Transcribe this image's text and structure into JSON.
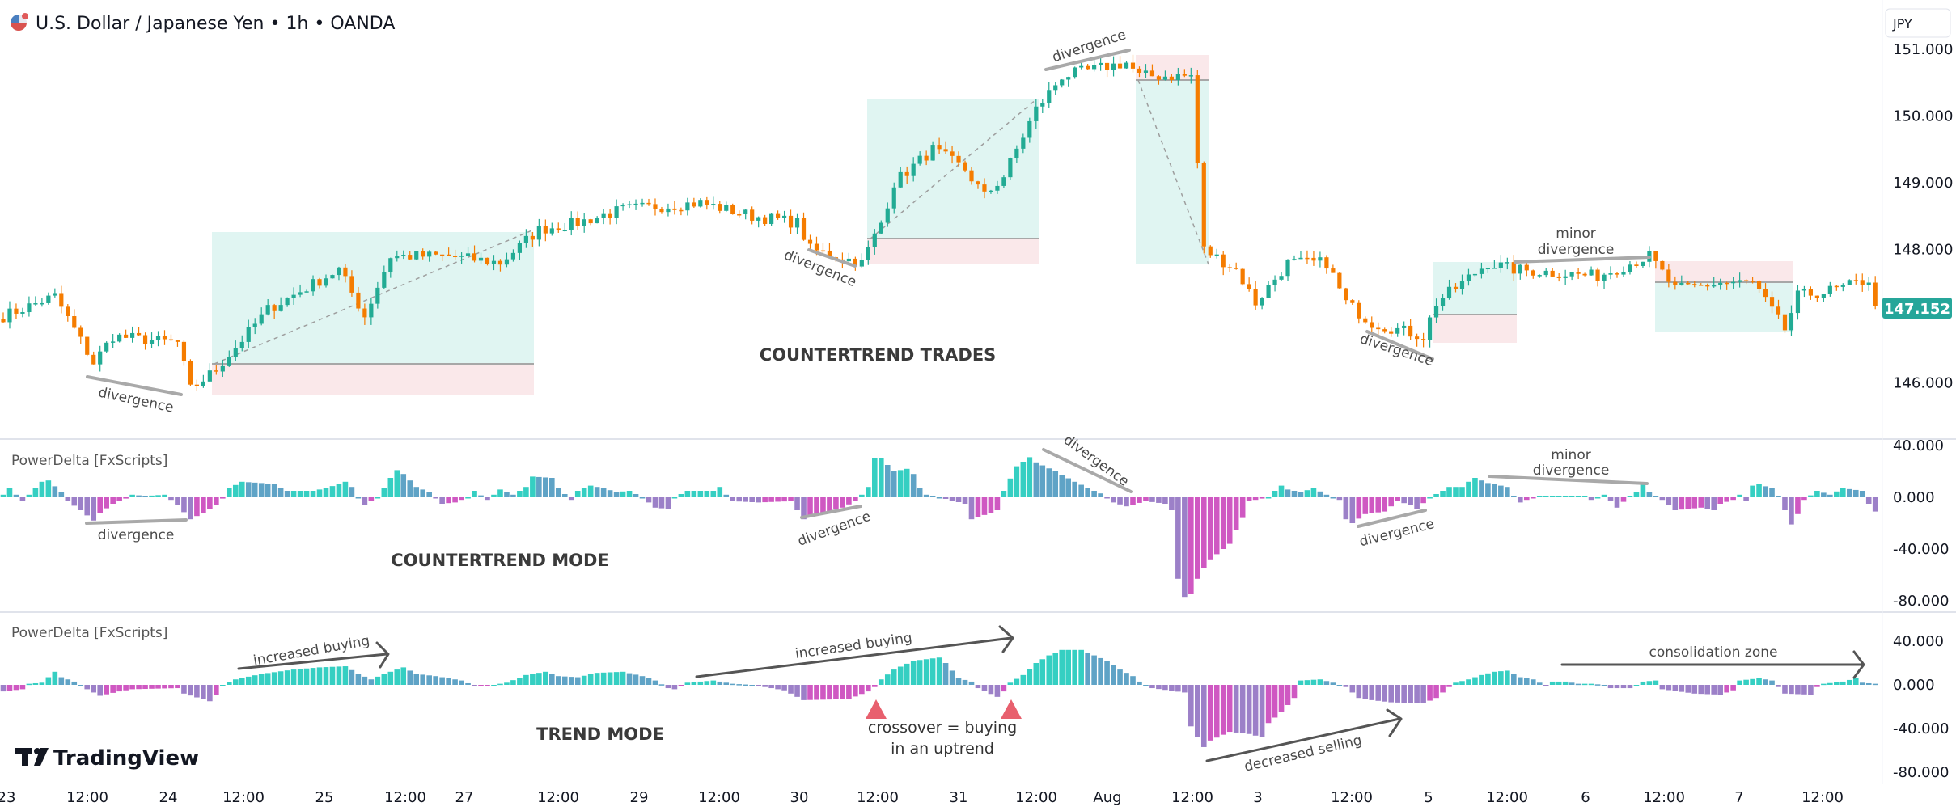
{
  "header": {
    "symbol_title": "U.S. Dollar / Japanese Yen • 1h • OANDA",
    "currency_badge": "JPY",
    "flag_icon": "us-jp-flag-icon"
  },
  "colors": {
    "up": "#22ab94",
    "down": "#f57c00",
    "hist_pos_rising": "#35cfc2",
    "hist_pos_falling": "#5fa3c6",
    "hist_neg_falling": "#9c80c8",
    "hist_neg_rising": "#cf58c2",
    "long_zone": "#e0f5f2",
    "short_zone": "#fae8ea",
    "triangle": "#e8606e",
    "price_label": "#26a69a"
  },
  "price_axis": {
    "ticks": [
      "151.000",
      "150.000",
      "149.000",
      "148.000",
      "146.000"
    ],
    "tick_values": [
      151,
      150,
      149,
      148,
      146
    ],
    "current_price": "147.152"
  },
  "indicator_axis": {
    "ticks": [
      "40.000",
      "0.000",
      "-40.000",
      "-80.000"
    ],
    "tick_values": [
      40,
      0,
      -40,
      -80
    ]
  },
  "time_axis": {
    "labels": [
      "23",
      "12:00",
      "24",
      "12:00",
      "25",
      "12:00",
      "27",
      "12:00",
      "29",
      "12:00",
      "30",
      "12:00",
      "31",
      "12:00",
      "Aug",
      "12:00",
      "3",
      "12:00",
      "5",
      "12:00",
      "6",
      "12:00",
      "7",
      "12:00"
    ]
  },
  "panes": {
    "indicator1_title": "PowerDelta [FxScripts]",
    "indicator2_title": "PowerDelta [FxScripts]"
  },
  "annotations": {
    "main": {
      "divergence_1": "divergence",
      "divergence_2": "divergence",
      "divergence_3": "divergence",
      "divergence_4": "divergence",
      "minor_divergence_line1": "minor",
      "minor_divergence_line2": "divergence",
      "label": "COUNTERTREND TRADES"
    },
    "indicator1": {
      "divergence_1": "divergence",
      "divergence_2": "divergence",
      "divergence_3": "divergence",
      "divergence_4": "divergence",
      "minor_divergence_line1": "minor",
      "minor_divergence_line2": "divergence",
      "label": "COUNTERTREND MODE"
    },
    "indicator2": {
      "increased_buying_1": "increased buying",
      "increased_buying_2": "increased buying",
      "crossover_line1": "crossover = buying",
      "crossover_line2": "in an uptrend",
      "decreased_selling": "decreased selling",
      "consolidation_zone": "consolidation zone",
      "label": "TREND MODE"
    }
  },
  "logo": {
    "text": "TradingView"
  },
  "chart_data": [
    {
      "type": "candlestick",
      "title": "U.S. Dollar / Japanese Yen • 1h • OANDA",
      "ylabel": "JPY",
      "ylim": [
        145.5,
        151.4
      ],
      "bar_count": 291,
      "close_waypoints": [
        [
          0,
          147.0
        ],
        [
          8,
          147.3
        ],
        [
          14,
          146.3
        ],
        [
          17,
          146.7
        ],
        [
          27,
          146.6
        ],
        [
          29,
          145.9
        ],
        [
          33,
          146.2
        ],
        [
          41,
          147.1
        ],
        [
          52,
          147.7
        ],
        [
          56,
          147.0
        ],
        [
          60,
          147.9
        ],
        [
          69,
          147.9
        ],
        [
          77,
          147.8
        ],
        [
          83,
          148.3
        ],
        [
          89,
          148.4
        ],
        [
          96,
          148.6
        ],
        [
          108,
          148.7
        ],
        [
          116,
          148.5
        ],
        [
          123,
          148.4
        ],
        [
          125,
          148.0
        ],
        [
          133,
          147.8
        ],
        [
          136,
          148.4
        ],
        [
          138,
          149.0
        ],
        [
          144,
          149.5
        ],
        [
          149,
          149.2
        ],
        [
          152,
          148.8
        ],
        [
          155,
          149.1
        ],
        [
          160,
          150.1
        ],
        [
          164,
          150.6
        ],
        [
          174,
          150.8
        ],
        [
          176,
          150.6
        ],
        [
          184,
          150.6
        ],
        [
          186,
          148.0
        ],
        [
          191,
          147.7
        ],
        [
          194,
          147.2
        ],
        [
          199,
          147.8
        ],
        [
          205,
          147.8
        ],
        [
          208,
          147.2
        ],
        [
          212,
          146.9
        ],
        [
          220,
          146.7
        ],
        [
          222,
          147.2
        ],
        [
          230,
          147.8
        ],
        [
          234,
          147.7
        ],
        [
          247,
          147.6
        ],
        [
          255,
          147.9
        ],
        [
          259,
          147.4
        ],
        [
          266,
          147.5
        ],
        [
          271,
          147.5
        ],
        [
          276,
          146.8
        ],
        [
          278,
          147.3
        ],
        [
          284,
          147.4
        ],
        [
          289,
          147.55
        ],
        [
          290,
          147.152
        ]
      ]
    },
    {
      "type": "histogram",
      "title": "PowerDelta [FxScripts] — Countertrend mode",
      "ylim": [
        -85,
        45
      ],
      "value_waypoints": [
        [
          0,
          2
        ],
        [
          1,
          7
        ],
        [
          3,
          -3
        ],
        [
          6,
          12
        ],
        [
          7,
          13
        ],
        [
          9,
          4
        ],
        [
          10,
          -3
        ],
        [
          12,
          -10
        ],
        [
          14,
          -18
        ],
        [
          15,
          -12
        ],
        [
          17,
          -5
        ],
        [
          19,
          -1
        ],
        [
          20,
          2
        ],
        [
          22,
          1
        ],
        [
          25,
          2
        ],
        [
          27,
          -6
        ],
        [
          29,
          -17
        ],
        [
          31,
          -12
        ],
        [
          33,
          -6
        ],
        [
          34,
          -1
        ],
        [
          35,
          7
        ],
        [
          37,
          12
        ],
        [
          40,
          11
        ],
        [
          42,
          10
        ],
        [
          44,
          5
        ],
        [
          48,
          5
        ],
        [
          50,
          7
        ],
        [
          53,
          12
        ],
        [
          54,
          8
        ],
        [
          55,
          0
        ],
        [
          56,
          -6
        ],
        [
          58,
          0
        ],
        [
          60,
          15
        ],
        [
          61,
          21
        ],
        [
          62,
          18
        ],
        [
          64,
          8
        ],
        [
          66,
          4
        ],
        [
          68,
          -5
        ],
        [
          70,
          -4
        ],
        [
          72,
          0
        ],
        [
          73,
          5
        ],
        [
          75,
          -2
        ],
        [
          77,
          6
        ],
        [
          79,
          2
        ],
        [
          81,
          8
        ],
        [
          82,
          16
        ],
        [
          85,
          15
        ],
        [
          86,
          7
        ],
        [
          88,
          -2
        ],
        [
          89,
          5
        ],
        [
          91,
          9
        ],
        [
          93,
          7
        ],
        [
          95,
          4
        ],
        [
          97,
          5
        ],
        [
          99,
          0
        ],
        [
          101,
          -8
        ],
        [
          103,
          -9
        ],
        [
          104,
          0
        ],
        [
          106,
          5
        ],
        [
          110,
          5
        ],
        [
          111,
          8
        ],
        [
          112,
          2
        ],
        [
          113,
          -3
        ],
        [
          117,
          -4
        ],
        [
          122,
          -3
        ],
        [
          124,
          -17
        ],
        [
          127,
          -12
        ],
        [
          130,
          -8
        ],
        [
          132,
          -3
        ],
        [
          133,
          2
        ],
        [
          134,
          8
        ],
        [
          135,
          30
        ],
        [
          136,
          30
        ],
        [
          138,
          20
        ],
        [
          140,
          22
        ],
        [
          141,
          18
        ],
        [
          142,
          7
        ],
        [
          143,
          2
        ],
        [
          145,
          0
        ],
        [
          149,
          -5
        ],
        [
          150,
          -17
        ],
        [
          153,
          -12
        ],
        [
          154,
          -10
        ],
        [
          155,
          5
        ],
        [
          157,
          24
        ],
        [
          159,
          31
        ],
        [
          160,
          27
        ],
        [
          163,
          20
        ],
        [
          166,
          12
        ],
        [
          169,
          5
        ],
        [
          170,
          3
        ],
        [
          172,
          -4
        ],
        [
          174,
          -7
        ],
        [
          177,
          -3
        ],
        [
          180,
          -5
        ],
        [
          181,
          -10
        ],
        [
          182,
          -63
        ],
        [
          183,
          -77
        ],
        [
          184,
          -75
        ],
        [
          185,
          -63
        ],
        [
          186,
          -55
        ],
        [
          187,
          -48
        ],
        [
          190,
          -36
        ],
        [
          191,
          -25
        ],
        [
          192,
          -16
        ],
        [
          193,
          -3
        ],
        [
          196,
          0
        ],
        [
          197,
          5
        ],
        [
          198,
          9
        ],
        [
          199,
          6
        ],
        [
          201,
          4
        ],
        [
          203,
          7
        ],
        [
          205,
          2
        ],
        [
          207,
          -2
        ],
        [
          208,
          -17
        ],
        [
          209,
          -20
        ],
        [
          211,
          -13
        ],
        [
          214,
          -11
        ],
        [
          216,
          -3
        ],
        [
          218,
          -6
        ],
        [
          219,
          -9
        ],
        [
          221,
          0
        ],
        [
          223,
          5
        ],
        [
          224,
          8
        ],
        [
          226,
          8
        ],
        [
          227,
          12
        ],
        [
          228,
          15
        ],
        [
          230,
          11
        ],
        [
          233,
          8
        ],
        [
          234,
          1
        ],
        [
          235,
          -4
        ],
        [
          236,
          -2
        ],
        [
          238,
          1
        ],
        [
          245,
          1
        ],
        [
          246,
          -2
        ],
        [
          248,
          2
        ],
        [
          250,
          -8
        ],
        [
          252,
          1
        ],
        [
          253,
          4
        ],
        [
          254,
          11
        ],
        [
          255,
          4
        ],
        [
          257,
          -2
        ],
        [
          259,
          -10
        ],
        [
          263,
          -8
        ],
        [
          265,
          -10
        ],
        [
          266,
          -5
        ],
        [
          268,
          -2
        ],
        [
          269,
          2
        ],
        [
          270,
          -3
        ],
        [
          271,
          9
        ],
        [
          272,
          10
        ],
        [
          274,
          7
        ],
        [
          275,
          1
        ],
        [
          276,
          -10
        ],
        [
          277,
          -21
        ],
        [
          278,
          -13
        ],
        [
          279,
          -2
        ],
        [
          281,
          5
        ],
        [
          283,
          2
        ],
        [
          285,
          7
        ],
        [
          288,
          5
        ],
        [
          289,
          -5
        ],
        [
          290,
          -11
        ]
      ]
    },
    {
      "type": "histogram",
      "title": "PowerDelta [FxScripts] — Trend mode",
      "ylim": [
        -85,
        45
      ],
      "value_waypoints": [
        [
          0,
          -6
        ],
        [
          3,
          -4
        ],
        [
          4,
          1
        ],
        [
          6,
          2
        ],
        [
          8,
          12
        ],
        [
          9,
          7
        ],
        [
          11,
          3
        ],
        [
          12,
          0
        ],
        [
          13,
          -4
        ],
        [
          15,
          -10
        ],
        [
          18,
          -6
        ],
        [
          20,
          -4
        ],
        [
          27,
          -3
        ],
        [
          28,
          -8
        ],
        [
          32,
          -15
        ],
        [
          33,
          -9
        ],
        [
          34,
          0
        ],
        [
          36,
          5
        ],
        [
          40,
          10
        ],
        [
          45,
          14
        ],
        [
          49,
          16
        ],
        [
          53,
          17
        ],
        [
          55,
          10
        ],
        [
          57,
          5
        ],
        [
          59,
          10
        ],
        [
          62,
          16
        ],
        [
          64,
          10
        ],
        [
          67,
          8
        ],
        [
          71,
          4
        ],
        [
          73,
          -1
        ],
        [
          76,
          0
        ],
        [
          78,
          2
        ],
        [
          81,
          9
        ],
        [
          84,
          12
        ],
        [
          86,
          8
        ],
        [
          89,
          7
        ],
        [
          92,
          11
        ],
        [
          96,
          12
        ],
        [
          99,
          8
        ],
        [
          101,
          4
        ],
        [
          103,
          -3
        ],
        [
          104,
          -4
        ],
        [
          106,
          2
        ],
        [
          110,
          4
        ],
        [
          113,
          1
        ],
        [
          116,
          0
        ],
        [
          118,
          -2
        ],
        [
          121,
          -5
        ],
        [
          124,
          -14
        ],
        [
          131,
          -13
        ],
        [
          134,
          -6
        ],
        [
          135,
          -2
        ],
        [
          136,
          5
        ],
        [
          138,
          14
        ],
        [
          141,
          22
        ],
        [
          145,
          25
        ],
        [
          146,
          20
        ],
        [
          148,
          6
        ],
        [
          150,
          3
        ],
        [
          151,
          -3
        ],
        [
          154,
          -11
        ],
        [
          155,
          -6
        ],
        [
          156,
          2
        ],
        [
          158,
          9
        ],
        [
          160,
          20
        ],
        [
          162,
          27
        ],
        [
          164,
          32
        ],
        [
          167,
          32
        ],
        [
          169,
          27
        ],
        [
          171,
          22
        ],
        [
          173,
          14
        ],
        [
          175,
          8
        ],
        [
          176,
          3
        ],
        [
          178,
          -3
        ],
        [
          183,
          -7
        ],
        [
          184,
          -38
        ],
        [
          186,
          -57
        ],
        [
          187,
          -51
        ],
        [
          190,
          -43
        ],
        [
          193,
          -45
        ],
        [
          195,
          -48
        ],
        [
          196,
          -35
        ],
        [
          198,
          -25
        ],
        [
          200,
          -12
        ],
        [
          201,
          4
        ],
        [
          204,
          5
        ],
        [
          206,
          2
        ],
        [
          208,
          -2
        ],
        [
          210,
          -12
        ],
        [
          212,
          -14
        ],
        [
          215,
          -16
        ],
        [
          220,
          -17
        ],
        [
          222,
          -12
        ],
        [
          223,
          -7
        ],
        [
          224,
          -2
        ],
        [
          225,
          2
        ],
        [
          227,
          5
        ],
        [
          229,
          9
        ],
        [
          231,
          12
        ],
        [
          233,
          13
        ],
        [
          235,
          7
        ],
        [
          237,
          5
        ],
        [
          238,
          2
        ],
        [
          239,
          -1
        ],
        [
          240,
          3
        ],
        [
          242,
          3
        ],
        [
          244,
          1
        ],
        [
          246,
          1
        ],
        [
          248,
          0
        ],
        [
          249,
          -3
        ],
        [
          252,
          -3
        ],
        [
          254,
          3
        ],
        [
          256,
          4
        ],
        [
          257,
          -4
        ],
        [
          262,
          -8
        ],
        [
          266,
          -9
        ],
        [
          268,
          -5
        ],
        [
          269,
          4
        ],
        [
          272,
          6
        ],
        [
          274,
          4
        ],
        [
          275,
          -2
        ],
        [
          276,
          -8
        ],
        [
          280,
          -9
        ],
        [
          281,
          -2
        ],
        [
          282,
          1
        ],
        [
          285,
          3
        ],
        [
          287,
          6
        ],
        [
          288,
          2
        ],
        [
          290,
          1
        ]
      ]
    }
  ]
}
